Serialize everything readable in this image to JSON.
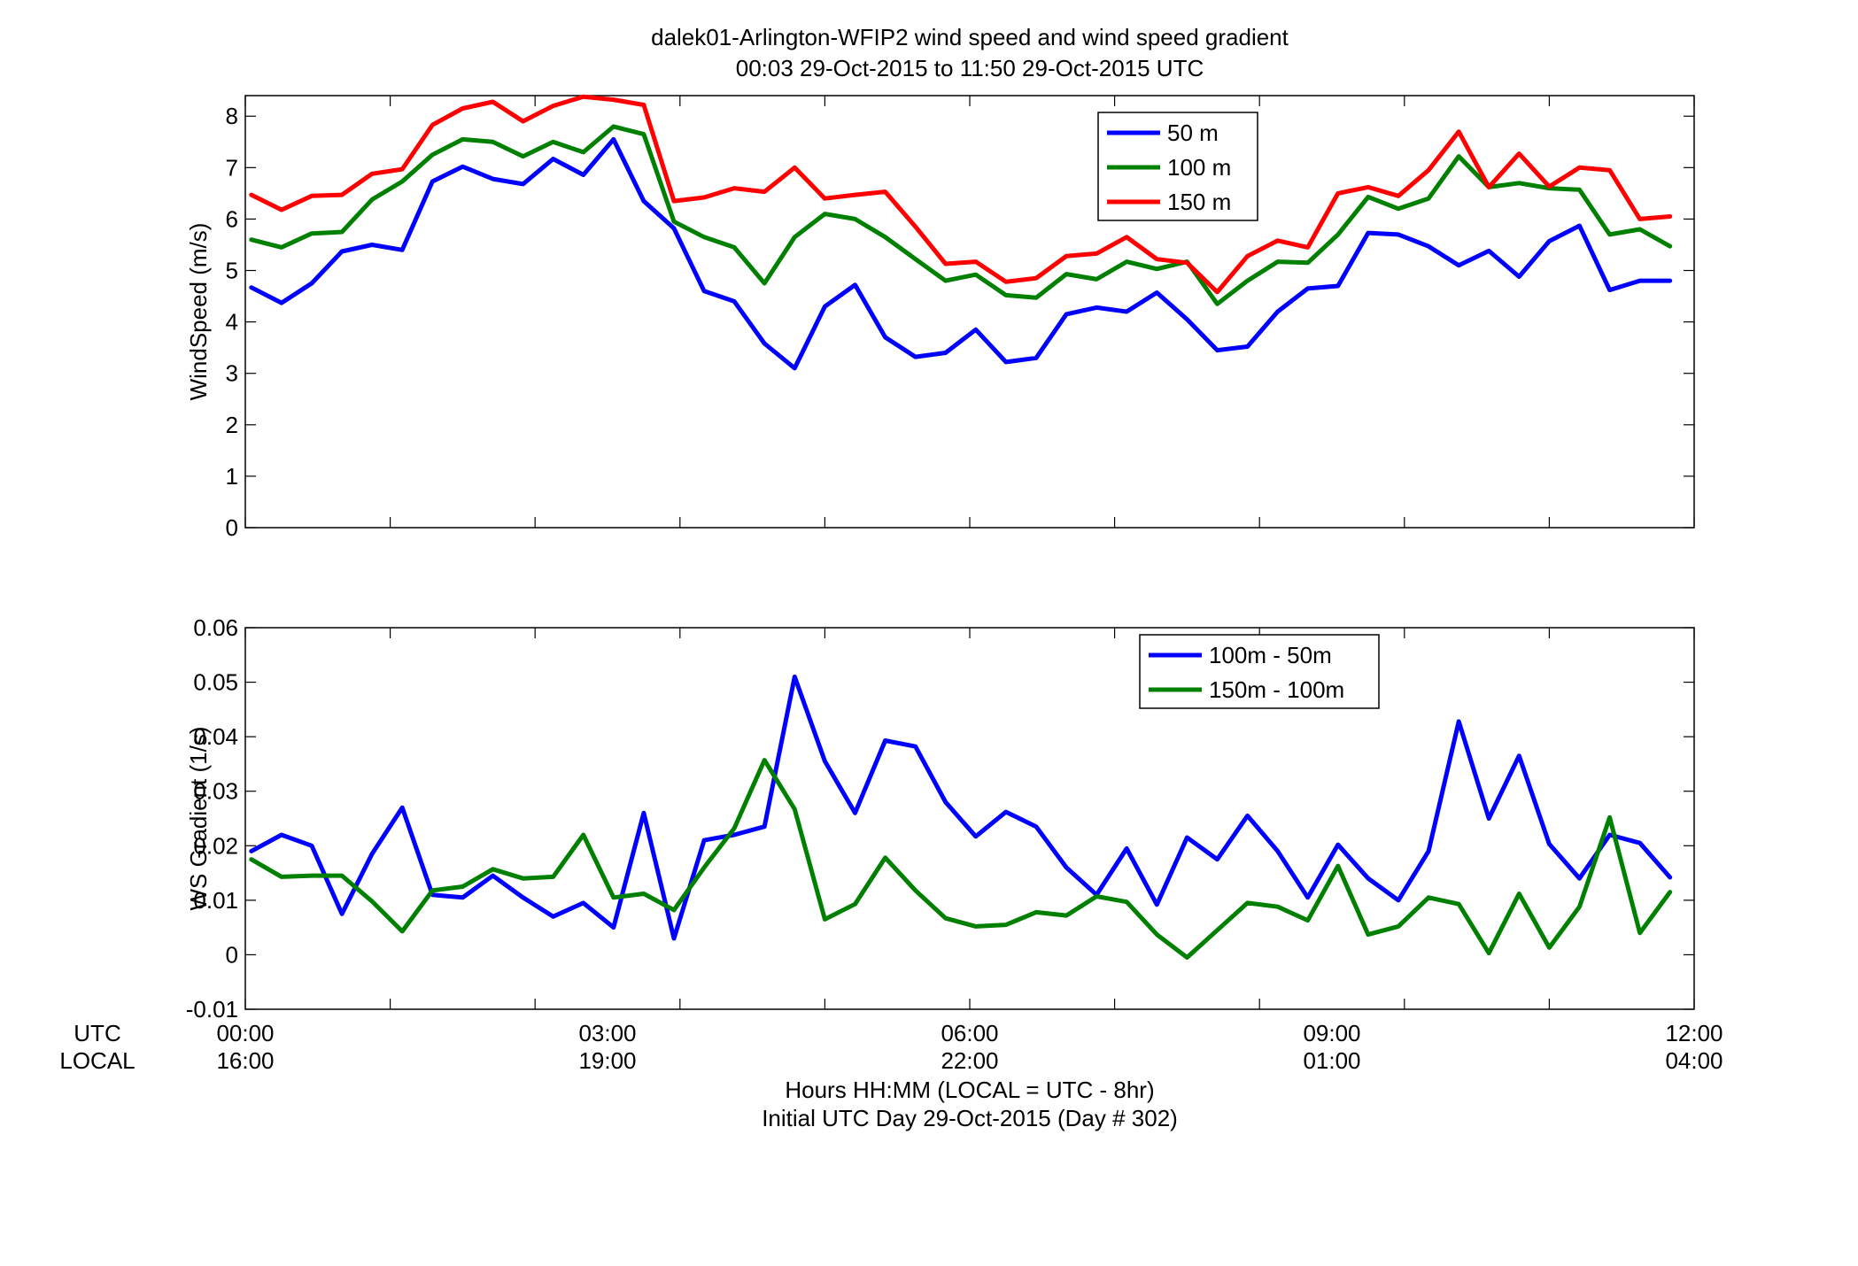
{
  "title": {
    "line1": "dalek01-Arlington-WFIP2  wind speed and wind speed gradient",
    "line2": "00:03 29-Oct-2015 to 11:50 29-Oct-2015  UTC"
  },
  "xaxis": {
    "utc_label": "UTC",
    "local_label": "LOCAL",
    "utc_ticks": [
      "00:00",
      "03:00",
      "06:00",
      "09:00",
      "12:00"
    ],
    "local_ticks": [
      "16:00",
      "19:00",
      "22:00",
      "01:00",
      "04:00"
    ],
    "caption1": "Hours HH:MM  (LOCAL = UTC - 8hr)",
    "caption2": "Initial UTC Day 29-Oct-2015 (Day # 302)"
  },
  "chart_data": [
    {
      "type": "line",
      "ylabel": "WindSpeed (m/s)",
      "xlim": [
        0,
        12
      ],
      "ylim": [
        0,
        8.4
      ],
      "yticks": [
        0,
        1,
        2,
        3,
        4,
        5,
        6,
        7,
        8
      ],
      "ytick_labels": [
        "0",
        "1",
        "2",
        "3",
        "4",
        "5",
        "6",
        "7",
        "8"
      ],
      "xticks": [
        0,
        1.2,
        2.4,
        3.6,
        4.8,
        6,
        7.2,
        8.4,
        9.6,
        10.8,
        12
      ],
      "legend_position": "top-right",
      "x": [
        0.05,
        0.3,
        0.55,
        0.8,
        1.05,
        1.3,
        1.55,
        1.8,
        2.05,
        2.3,
        2.55,
        2.8,
        3.05,
        3.3,
        3.55,
        3.8,
        4.05,
        4.3,
        4.55,
        4.8,
        5.05,
        5.3,
        5.55,
        5.8,
        6.05,
        6.3,
        6.55,
        6.8,
        7.05,
        7.3,
        7.55,
        7.8,
        8.05,
        8.3,
        8.55,
        8.8,
        9.05,
        9.3,
        9.55,
        9.8,
        10.05,
        10.3,
        10.55,
        10.8,
        11.05,
        11.3,
        11.55,
        11.8
      ],
      "series": [
        {
          "name": "50 m",
          "color": "#0000ff",
          "values": [
            4.67,
            4.37,
            4.75,
            5.37,
            5.5,
            5.4,
            6.73,
            7.02,
            6.78,
            6.68,
            7.17,
            6.86,
            7.55,
            6.35,
            5.82,
            4.6,
            4.4,
            3.58,
            3.1,
            4.3,
            4.72,
            3.7,
            3.32,
            3.4,
            3.85,
            3.22,
            3.3,
            4.15,
            4.28,
            4.2,
            4.57,
            4.05,
            3.45,
            3.52,
            4.2,
            4.65,
            4.7,
            5.73,
            5.7,
            5.47,
            5.1,
            5.38,
            4.88,
            5.57,
            5.87,
            4.62,
            4.8,
            4.8
          ]
        },
        {
          "name": "100 m",
          "color": "#008000",
          "values": [
            5.6,
            5.45,
            5.72,
            5.75,
            6.38,
            6.73,
            7.25,
            7.55,
            7.5,
            7.22,
            7.5,
            7.3,
            7.8,
            7.65,
            5.95,
            5.65,
            5.45,
            4.75,
            5.65,
            6.1,
            6.0,
            5.65,
            5.22,
            4.8,
            4.92,
            4.52,
            4.47,
            4.93,
            4.83,
            5.17,
            5.03,
            5.17,
            4.35,
            4.8,
            5.17,
            5.15,
            5.7,
            6.43,
            6.2,
            6.4,
            7.22,
            6.62,
            6.7,
            6.6,
            6.57,
            5.7,
            5.8,
            5.47
          ]
        },
        {
          "name": "150 m",
          "color": "#ff0000",
          "values": [
            6.47,
            6.18,
            6.45,
            6.47,
            6.88,
            6.97,
            7.83,
            8.15,
            8.28,
            7.9,
            8.2,
            8.38,
            8.32,
            8.22,
            6.35,
            6.42,
            6.6,
            6.53,
            7.0,
            6.4,
            6.47,
            6.53,
            5.85,
            5.13,
            5.17,
            4.78,
            4.85,
            5.28,
            5.33,
            5.65,
            5.22,
            5.15,
            4.58,
            5.28,
            5.58,
            5.45,
            6.5,
            6.62,
            6.45,
            6.95,
            7.7,
            6.62,
            7.27,
            6.63,
            7.0,
            6.95,
            6.0,
            6.05
          ]
        }
      ]
    },
    {
      "type": "line",
      "ylabel": "WS Gradient (1/s)",
      "xlim": [
        0,
        12
      ],
      "ylim": [
        -0.01,
        0.06
      ],
      "yticks": [
        -0.01,
        0,
        0.01,
        0.02,
        0.03,
        0.04,
        0.05,
        0.06
      ],
      "ytick_labels": [
        "-0.01",
        "0",
        "0.01",
        "0.02",
        "0.03",
        "0.04",
        "0.05",
        "0.06"
      ],
      "xticks": [
        0,
        1.2,
        2.4,
        3.6,
        4.8,
        6,
        7.2,
        8.4,
        9.6,
        10.8,
        12
      ],
      "legend_position": "top-right",
      "x": [
        0.05,
        0.3,
        0.55,
        0.8,
        1.05,
        1.3,
        1.55,
        1.8,
        2.05,
        2.3,
        2.55,
        2.8,
        3.05,
        3.3,
        3.55,
        3.8,
        4.05,
        4.3,
        4.55,
        4.8,
        5.05,
        5.3,
        5.55,
        5.8,
        6.05,
        6.3,
        6.55,
        6.8,
        7.05,
        7.3,
        7.55,
        7.8,
        8.05,
        8.3,
        8.55,
        8.8,
        9.05,
        9.3,
        9.55,
        9.8,
        10.05,
        10.3,
        10.55,
        10.8,
        11.05,
        11.3,
        11.55,
        11.8
      ],
      "series": [
        {
          "name": "100m - 50m",
          "color": "#0000ff",
          "values": [
            0.019,
            0.022,
            0.02,
            0.0075,
            0.0185,
            0.027,
            0.011,
            0.0105,
            0.0145,
            0.0105,
            0.007,
            0.0095,
            0.005,
            0.026,
            0.003,
            0.021,
            0.022,
            0.0235,
            0.051,
            0.0355,
            0.026,
            0.0393,
            0.0382,
            0.028,
            0.0217,
            0.0262,
            0.0235,
            0.016,
            0.011,
            0.0195,
            0.0092,
            0.0215,
            0.0175,
            0.0255,
            0.019,
            0.0105,
            0.0202,
            0.014,
            0.01,
            0.019,
            0.0428,
            0.025,
            0.0365,
            0.0203,
            0.014,
            0.022,
            0.0205,
            0.0142
          ]
        },
        {
          "name": "150m - 100m",
          "color": "#008000",
          "values": [
            0.0175,
            0.0143,
            0.0145,
            0.0145,
            0.0098,
            0.0043,
            0.0118,
            0.0125,
            0.0157,
            0.014,
            0.0143,
            0.022,
            0.0105,
            0.0112,
            0.0082,
            0.016,
            0.0232,
            0.0357,
            0.0267,
            0.0065,
            0.0093,
            0.0178,
            0.0118,
            0.0067,
            0.0052,
            0.0055,
            0.0078,
            0.0072,
            0.0107,
            0.0097,
            0.0037,
            -0.0005,
            0.0045,
            0.0095,
            0.0088,
            0.0063,
            0.0163,
            0.0037,
            0.0052,
            0.0105,
            0.0093,
            0.0003,
            0.0112,
            0.0013,
            0.0088,
            0.0252,
            0.004,
            0.0115
          ]
        }
      ]
    }
  ]
}
